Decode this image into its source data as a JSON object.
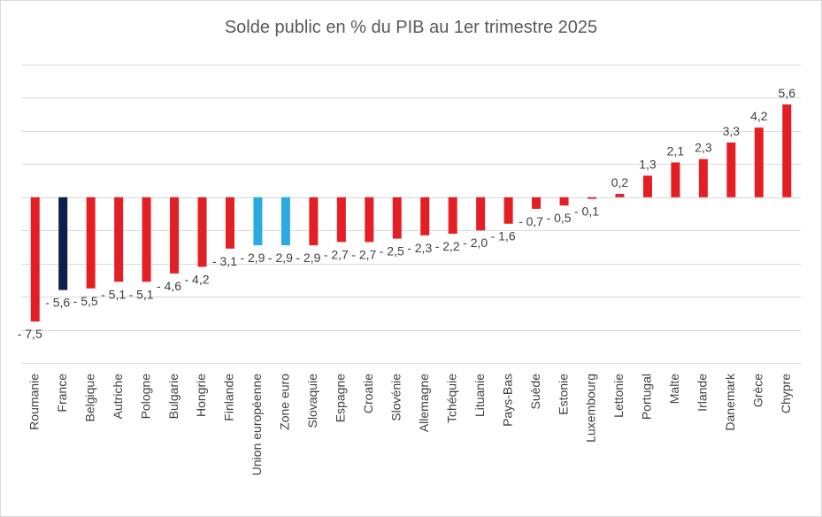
{
  "chart_data": {
    "type": "bar",
    "title": "Solde public en % du PIB au 1er trimestre 2025",
    "xlabel": "",
    "ylabel": "",
    "ylim": [
      -10,
      8
    ],
    "grid": true,
    "legend": "none",
    "categories": [
      "Roumanie",
      "France",
      "Belgique",
      "Autriche",
      "Pologne",
      "Bulgarie",
      "Hongrie",
      "Finlande",
      "Union européenne",
      "Zone euro",
      "Slovaquie",
      "Espagne",
      "Croatie",
      "Slovénie",
      "Allemagne",
      "Tchéquie",
      "Lituanie",
      "Pays-Bas",
      "Suède",
      "Estonie",
      "Luxembourg",
      "Lettonie",
      "Portugal",
      "Malte",
      "Irlande",
      "Danemark",
      "Grèce",
      "Chypre"
    ],
    "values": [
      -7.5,
      -5.6,
      -5.5,
      -5.1,
      -5.1,
      -4.6,
      -4.2,
      -3.1,
      -2.9,
      -2.9,
      -2.9,
      -2.7,
      -2.7,
      -2.5,
      -2.3,
      -2.2,
      -2.0,
      -1.6,
      -0.7,
      -0.5,
      -0.1,
      0.2,
      1.3,
      2.1,
      2.3,
      3.3,
      4.2,
      5.6
    ],
    "data_labels": [
      "- 7,5",
      "- 5,6",
      "- 5,5",
      "- 5,1",
      "- 5,1",
      "- 4,6",
      "- 4,2",
      "- 3,1",
      "- 2,9",
      "- 2,9",
      "- 2,9",
      "- 2,7",
      "- 2,7",
      "- 2,5",
      "- 2,3",
      "- 2,2",
      "- 2,0",
      "- 1,6",
      "- 0,7",
      "- 0,5",
      "- 0,1",
      "0,2",
      "1,3",
      "2,1",
      "2,3",
      "3,3",
      "4,2",
      "5,6"
    ],
    "bar_colors": [
      "#e31e24",
      "#0d1f4f",
      "#e31e24",
      "#e31e24",
      "#e31e24",
      "#e31e24",
      "#e31e24",
      "#e31e24",
      "#29abe2",
      "#29abe2",
      "#e31e24",
      "#e31e24",
      "#e31e24",
      "#e31e24",
      "#e31e24",
      "#e31e24",
      "#e31e24",
      "#e31e24",
      "#e31e24",
      "#e31e24",
      "#e31e24",
      "#e31e24",
      "#e31e24",
      "#e31e24",
      "#e31e24",
      "#e31e24",
      "#e31e24",
      "#e31e24"
    ]
  },
  "colors": {
    "grid": "#d9d9d9",
    "text": "#404040",
    "title": "#595959"
  }
}
